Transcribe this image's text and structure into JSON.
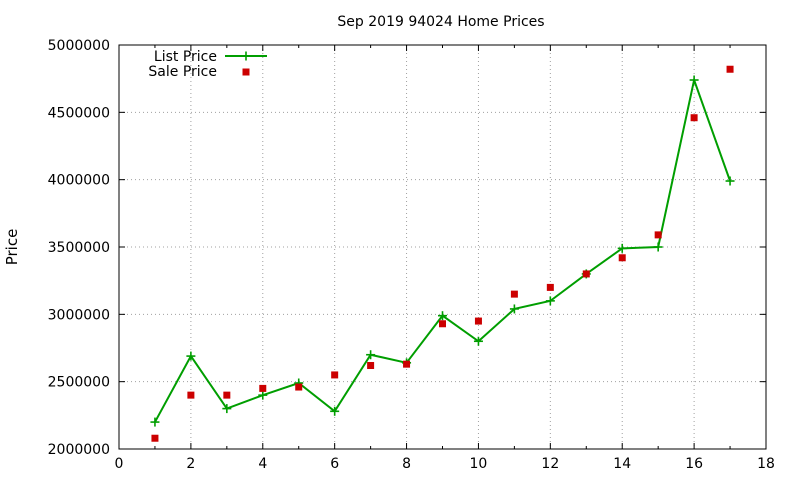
{
  "chart_data": {
    "type": "line",
    "title": "Sep 2019 94024 Home Prices",
    "xlabel": "",
    "ylabel": "Price",
    "xlim": [
      0,
      18
    ],
    "ylim": [
      2000000,
      5000000
    ],
    "x_ticks": [
      "0",
      "2",
      "4",
      "6",
      "8",
      "10",
      "12",
      "14",
      "16",
      "18"
    ],
    "y_ticks": [
      "2000000",
      "2500000",
      "3000000",
      "3500000",
      "4000000",
      "4500000",
      "5000000"
    ],
    "grid": true,
    "legend_position": "top-left",
    "series": [
      {
        "name": "List Price",
        "style": "lines+points",
        "marker": "plus",
        "color": "#009e00",
        "x": [
          1,
          2,
          3,
          4,
          5,
          6,
          7,
          8,
          9,
          10,
          11,
          12,
          13,
          14,
          15,
          16,
          17
        ],
        "values": [
          2200000,
          2690000,
          2300000,
          2400000,
          2490000,
          2280000,
          2700000,
          2640000,
          2990000,
          2800000,
          3040000,
          3100000,
          3300000,
          3490000,
          3500000,
          4740000,
          3990000
        ]
      },
      {
        "name": "Sale Price",
        "style": "points",
        "marker": "square",
        "color": "#cc0000",
        "x": [
          1,
          2,
          3,
          4,
          5,
          6,
          7,
          8,
          9,
          10,
          11,
          12,
          13,
          14,
          15,
          16,
          17
        ],
        "values": [
          2080000,
          2400000,
          2400000,
          2450000,
          2460000,
          2550000,
          2620000,
          2630000,
          2930000,
          2950000,
          3150000,
          3200000,
          3300000,
          3420000,
          3590000,
          4460000,
          4820000
        ]
      }
    ]
  }
}
